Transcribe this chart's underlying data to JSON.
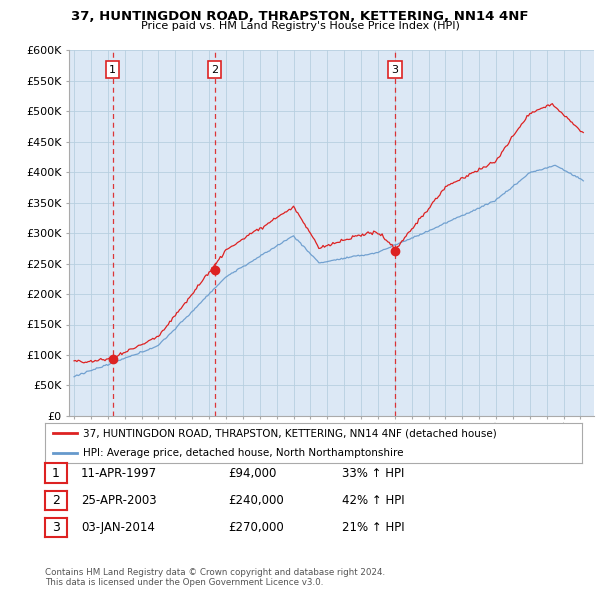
{
  "title": "37, HUNTINGDON ROAD, THRAPSTON, KETTERING, NN14 4NF",
  "subtitle": "Price paid vs. HM Land Registry's House Price Index (HPI)",
  "ylim": [
    0,
    600000
  ],
  "yticks": [
    0,
    50000,
    100000,
    150000,
    200000,
    250000,
    300000,
    350000,
    400000,
    450000,
    500000,
    550000,
    600000
  ],
  "ytick_labels": [
    "£0",
    "£50K",
    "£100K",
    "£150K",
    "£200K",
    "£250K",
    "£300K",
    "£350K",
    "£400K",
    "£450K",
    "£500K",
    "£550K",
    "£600K"
  ],
  "price_color": "#dd2222",
  "hpi_color": "#6699cc",
  "vline_color": "#dd2222",
  "bg_color": "#dce8f5",
  "grid_color": "#b8cfe0",
  "outer_bg": "#ffffff",
  "sale_points": [
    {
      "year": 1997.28,
      "price": 94000,
      "label": "1"
    },
    {
      "year": 2003.32,
      "price": 240000,
      "label": "2"
    },
    {
      "year": 2014.02,
      "price": 270000,
      "label": "3"
    }
  ],
  "legend_entries": [
    "37, HUNTINGDON ROAD, THRAPSTON, KETTERING, NN14 4NF (detached house)",
    "HPI: Average price, detached house, North Northamptonshire"
  ],
  "table_rows": [
    {
      "num": "1",
      "date": "11-APR-1997",
      "price": "£94,000",
      "hpi": "33% ↑ HPI"
    },
    {
      "num": "2",
      "date": "25-APR-2003",
      "price": "£240,000",
      "hpi": "42% ↑ HPI"
    },
    {
      "num": "3",
      "date": "03-JAN-2014",
      "price": "£270,000",
      "hpi": "21% ↑ HPI"
    }
  ],
  "footnote": "Contains HM Land Registry data © Crown copyright and database right 2024.\nThis data is licensed under the Open Government Licence v3.0."
}
